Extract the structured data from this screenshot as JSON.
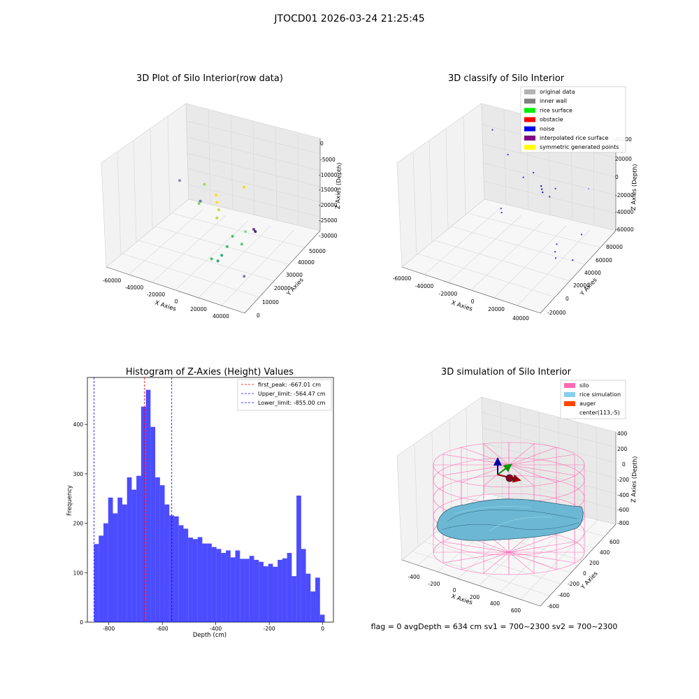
{
  "suptitle": "JTOCD01 2026-03-24 21:25:45",
  "footer": "flag = 0     avgDepth = 634 cm  sv1 = 700~2300  sv2 = 700~2300",
  "chart_data": [
    {
      "type": "scatter",
      "title": "3D Plot of Silo Interior(row data)",
      "xlabel": "X Axies",
      "ylabel": "Y Axies",
      "zlabel": "Z Axies (Depth)",
      "xticks": [
        "-60000",
        "-40000",
        "-20000",
        "0",
        "20000",
        "40000"
      ],
      "yticks": [
        "0",
        "10000",
        "20000",
        "30000",
        "40000",
        "50000"
      ],
      "zticks": [
        "0",
        "-5000",
        "-10000",
        "-15000",
        "-20000",
        "-25000",
        "-30000"
      ],
      "colormap": "viridis",
      "points": [
        {
          "x": -58000,
          "y": 42000,
          "z": -19000,
          "c": "#8a8fa8"
        },
        {
          "x": -38000,
          "y": 40000,
          "z": -22000,
          "c": "#5b7fb0"
        },
        {
          "x": -22000,
          "y": 30000,
          "z": -12000,
          "c": "#a6d854"
        },
        {
          "x": -24000,
          "y": 28000,
          "z": -17000,
          "c": "#8fd15a"
        },
        {
          "x": -12000,
          "y": 30000,
          "z": -14000,
          "c": "#f2e51e"
        },
        {
          "x": -10000,
          "y": 29000,
          "z": -15500,
          "c": "#f2e51e"
        },
        {
          "x": -6000,
          "y": 27000,
          "z": -16500,
          "c": "#c4e038"
        },
        {
          "x": -5000,
          "y": 25000,
          "z": -18000,
          "c": "#b8de3e"
        },
        {
          "x": 4000,
          "y": 36000,
          "z": -12000,
          "c": "#e8e41a"
        },
        {
          "x": 12000,
          "y": 8000,
          "z": -22000,
          "c": "#3dba6e"
        },
        {
          "x": 16000,
          "y": 9000,
          "z": -22500,
          "c": "#31a57a"
        },
        {
          "x": 18000,
          "y": 10000,
          "z": -21000,
          "c": "#2fb07a"
        },
        {
          "x": 20000,
          "y": 12000,
          "z": -19000,
          "c": "#3fbb6c"
        },
        {
          "x": 22000,
          "y": 14000,
          "z": -16500,
          "c": "#47c16a"
        },
        {
          "x": 38000,
          "y": 10000,
          "z": -12000,
          "c": "#8fd4a4"
        },
        {
          "x": 40000,
          "y": 6000,
          "z": -14000,
          "c": "#5fbf8c"
        },
        {
          "x": 42000,
          "y": 6000,
          "z": -23000,
          "c": "#7a7f99"
        },
        {
          "x": -3000,
          "y": 48000,
          "z": -29000,
          "c": "#6a3d82"
        },
        {
          "x": -3000,
          "y": 49000,
          "z": -30000,
          "c": "#4c2e6b"
        }
      ]
    },
    {
      "type": "scatter",
      "title": "3D classify of Silo Interior",
      "xlabel": "X Axies",
      "ylabel": "Y Axies",
      "zlabel": "Z Axies (Depth)",
      "xticks": [
        "-60000",
        "-40000",
        "-20000",
        "0",
        "20000",
        "40000"
      ],
      "yticks": [
        "-20000",
        "0",
        "20000",
        "40000",
        "60000",
        "80000"
      ],
      "zticks": [
        "40000",
        "20000",
        "0",
        "-20000",
        "-40000",
        "-60000"
      ],
      "legend": [
        {
          "label": "original data",
          "color": "#b3b3b3"
        },
        {
          "label": "inner wall",
          "color": "#808080"
        },
        {
          "label": "rice surface",
          "color": "#00ee00"
        },
        {
          "label": "obstacle",
          "color": "#ff0000"
        },
        {
          "label": "noise",
          "color": "#0000ee"
        },
        {
          "label": "interpolated rice surface",
          "color": "#800080"
        },
        {
          "label": "symmetric generated points",
          "color": "#ffff00"
        }
      ],
      "points": [
        {
          "x": -60000,
          "y": 80000,
          "z": -12000,
          "c": "#3333dd"
        },
        {
          "x": -40000,
          "y": 70000,
          "z": -22000,
          "c": "#3333dd"
        },
        {
          "x": -20000,
          "y": 60000,
          "z": -30000,
          "c": "#3333dd"
        },
        {
          "x": -8000,
          "y": 55000,
          "z": -18000,
          "c": "#3333dd"
        },
        {
          "x": -18000,
          "y": 30000,
          "z": -40000,
          "c": "#3333dd"
        },
        {
          "x": -16000,
          "y": 28000,
          "z": -42000,
          "c": "#3333dd"
        },
        {
          "x": 2000,
          "y": 50000,
          "z": -24000,
          "c": "#0000cc"
        },
        {
          "x": 4000,
          "y": 48000,
          "z": -25000,
          "c": "#0000cc"
        },
        {
          "x": 6000,
          "y": 46000,
          "z": -26000,
          "c": "#0000cc"
        },
        {
          "x": 12000,
          "y": 46000,
          "z": -28000,
          "c": "#3333dd"
        },
        {
          "x": 14000,
          "y": 50000,
          "z": -22000,
          "c": "#3333dd"
        },
        {
          "x": 36000,
          "y": 20000,
          "z": -48000,
          "c": "#3333dd"
        },
        {
          "x": 36000,
          "y": 18000,
          "z": -54000,
          "c": "#3333dd"
        },
        {
          "x": 38000,
          "y": 16000,
          "z": -58000,
          "c": "#3333dd"
        },
        {
          "x": 42000,
          "y": 50000,
          "z": -12000,
          "c": "#9999ee"
        },
        {
          "x": 50000,
          "y": 30000,
          "z": -40000,
          "c": "#3333dd"
        },
        {
          "x": 48000,
          "y": 22000,
          "z": -60000,
          "c": "#3333dd"
        }
      ]
    },
    {
      "type": "bar",
      "title": "Histogram of Z-Axies (Height) Values",
      "xlabel": "Depth (cm)",
      "ylabel": "Frequency",
      "xlim": [
        -880,
        40
      ],
      "ylim": [
        0,
        495
      ],
      "xticks": [
        -800,
        -600,
        -400,
        -200,
        0
      ],
      "yticks": [
        0,
        100,
        200,
        300,
        400
      ],
      "bin_start": -855,
      "bin_width": 17.6,
      "bar_color": "#0000ff",
      "values": [
        158,
        175,
        200,
        252,
        220,
        252,
        238,
        293,
        268,
        296,
        436,
        470,
        395,
        293,
        277,
        238,
        216,
        214,
        196,
        189,
        171,
        168,
        172,
        159,
        159,
        152,
        148,
        140,
        145,
        131,
        145,
        128,
        128,
        134,
        126,
        122,
        113,
        118,
        112,
        126,
        129,
        140,
        93,
        256,
        148,
        98,
        62,
        90,
        15
      ],
      "lines": [
        {
          "label": "first_peak: -667.01 cm",
          "x": -667.01,
          "color": "#ff0000"
        },
        {
          "label": "Upper_limit: -564.47 cm",
          "x": -564.47,
          "color": "#0000ff"
        },
        {
          "label": "Lower_limit: -855.00 cm",
          "x": -855.0,
          "color": "#0000ff"
        }
      ]
    },
    {
      "type": "surface",
      "title": "3D simulation of Silo Interior",
      "xlabel": "X Axies",
      "ylabel": "Y Axies",
      "zlabel": "Z Axies (Depth)",
      "xticks": [
        "-400",
        "-200",
        "0",
        "200",
        "400",
        "600"
      ],
      "yticks": [
        "-600",
        "-400",
        "-200",
        "0",
        "200",
        "400",
        "600"
      ],
      "zticks": [
        "400",
        "200",
        "0",
        "-200",
        "-400",
        "-600",
        "-800"
      ],
      "legend": [
        {
          "label": "silo",
          "color": "#ff69b4"
        },
        {
          "label": "rice simulation",
          "color": "#87ceeb"
        },
        {
          "label": "auger",
          "color": "#ff4500"
        },
        {
          "label": "center(113,-5)",
          "color": ""
        }
      ]
    }
  ]
}
